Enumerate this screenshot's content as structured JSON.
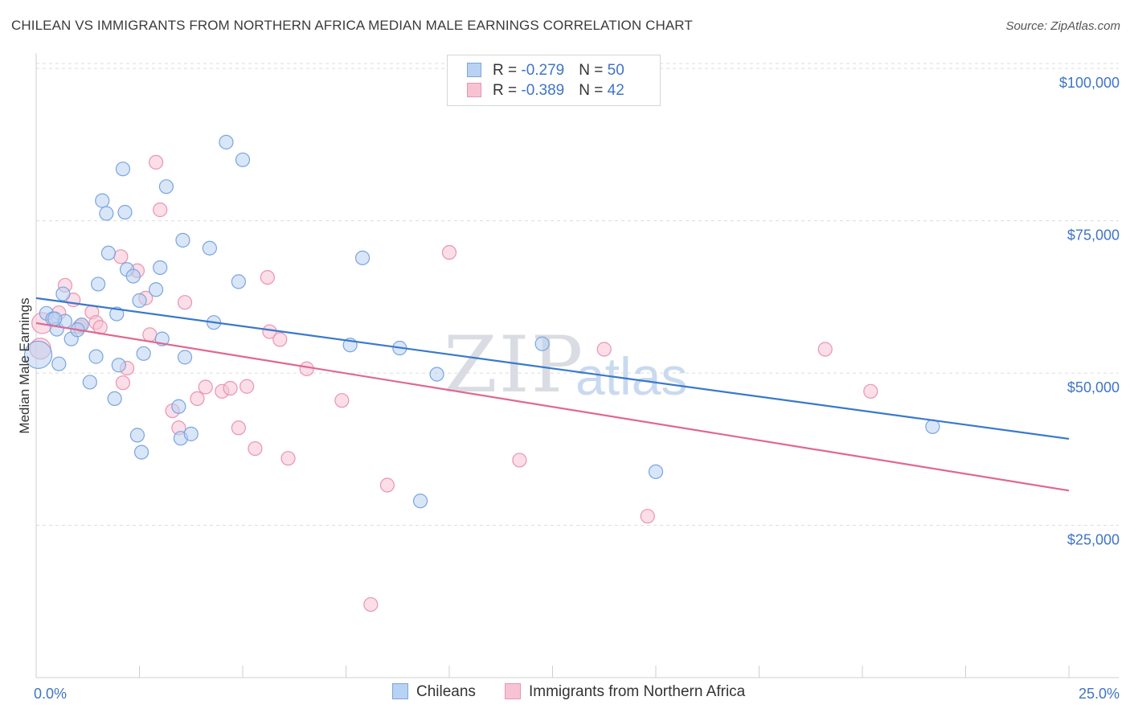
{
  "title": "CHILEAN VS IMMIGRANTS FROM NORTHERN AFRICA MEDIAN MALE EARNINGS CORRELATION CHART",
  "source": "Source: ZipAtlas.com",
  "watermark": {
    "zip": "ZIP",
    "atlas": "atlas"
  },
  "legend_top": [
    {
      "r_label": "R = ",
      "r_value": "-0.279",
      "n_label": "N = ",
      "n_value": "50"
    },
    {
      "r_label": "R = ",
      "r_value": "-0.389",
      "n_label": "N = ",
      "n_value": "42"
    }
  ],
  "legend_bottom": [
    "Chileans",
    "Immigrants from Northern Africa"
  ],
  "colors": {
    "blue_fill": "#b8d2f3",
    "blue_edge": "#7aa5df",
    "blue_line": "#3a78cc",
    "pink_fill": "#f7c3d3",
    "pink_edge": "#ea94b0",
    "pink_line": "#e0688f",
    "axis_text": "#3f74c8",
    "grid": "#dcdcdc"
  },
  "chart_data": {
    "type": "scatter",
    "title": "CHILEAN VS IMMIGRANTS FROM NORTHERN AFRICA MEDIAN MALE EARNINGS CORRELATION CHART",
    "xlabel": "",
    "ylabel": "Median Male Earnings",
    "xlim": [
      0,
      25
    ],
    "ylim": [
      0,
      102000
    ],
    "x_tick_labels": [
      "0.0%",
      "25.0%"
    ],
    "y_ticks": [
      25000,
      50000,
      75000,
      100000
    ],
    "y_tick_labels": [
      "$25,000",
      "$50,000",
      "$75,000",
      "$100,000"
    ],
    "grid": true,
    "series": [
      {
        "name": "Chileans",
        "color": "blue",
        "trend": {
          "x": [
            0,
            25
          ],
          "y": [
            62300,
            39200
          ]
        },
        "points": [
          [
            0.05,
            53000,
            3
          ],
          [
            0.25,
            59800,
            1
          ],
          [
            0.4,
            58900,
            1
          ],
          [
            0.5,
            57200,
            1
          ],
          [
            0.55,
            51500,
            1
          ],
          [
            0.65,
            63000,
            1
          ],
          [
            0.85,
            55600,
            1
          ],
          [
            1.1,
            57900,
            1
          ],
          [
            1.0,
            57100,
            1
          ],
          [
            1.3,
            48500,
            1
          ],
          [
            1.45,
            52700,
            1
          ],
          [
            1.5,
            64600,
            1
          ],
          [
            1.6,
            78300,
            1
          ],
          [
            1.7,
            76200,
            1
          ],
          [
            1.75,
            69700,
            1
          ],
          [
            1.9,
            45800,
            1
          ],
          [
            1.95,
            59700,
            1
          ],
          [
            2.0,
            51300,
            1
          ],
          [
            2.1,
            83500,
            1
          ],
          [
            2.15,
            76400,
            1
          ],
          [
            2.2,
            67000,
            1
          ],
          [
            2.35,
            65900,
            1
          ],
          [
            2.45,
            39800,
            1
          ],
          [
            2.5,
            61900,
            1
          ],
          [
            2.55,
            37000,
            1
          ],
          [
            2.6,
            53200,
            1
          ],
          [
            2.9,
            63700,
            1
          ],
          [
            3.0,
            67300,
            1
          ],
          [
            3.05,
            55600,
            1
          ],
          [
            3.15,
            80600,
            1
          ],
          [
            3.45,
            44500,
            1
          ],
          [
            3.5,
            39300,
            1
          ],
          [
            3.55,
            71800,
            1
          ],
          [
            3.6,
            52600,
            1
          ],
          [
            3.75,
            40000,
            1
          ],
          [
            4.2,
            70500,
            1
          ],
          [
            4.3,
            58300,
            1
          ],
          [
            4.6,
            87900,
            1
          ],
          [
            4.9,
            65000,
            1
          ],
          [
            5.0,
            85000,
            1
          ],
          [
            7.6,
            54600,
            1
          ],
          [
            7.9,
            68900,
            1
          ],
          [
            8.8,
            54100,
            1
          ],
          [
            9.3,
            29000,
            1
          ],
          [
            9.7,
            49800,
            1
          ],
          [
            12.25,
            54800,
            1
          ],
          [
            15.0,
            33800,
            1
          ],
          [
            21.7,
            41200,
            1
          ],
          [
            0.7,
            58500,
            1
          ],
          [
            0.45,
            58900,
            1
          ]
        ]
      },
      {
        "name": "Immigrants from Northern Africa",
        "color": "pink",
        "trend": {
          "x": [
            0,
            25
          ],
          "y": [
            58200,
            30700
          ]
        },
        "points": [
          [
            0.1,
            54000,
            2
          ],
          [
            0.15,
            58200,
            2
          ],
          [
            0.55,
            59900,
            1
          ],
          [
            0.7,
            64400,
            1
          ],
          [
            0.9,
            62000,
            1
          ],
          [
            1.05,
            57600,
            1
          ],
          [
            1.1,
            57900,
            1
          ],
          [
            1.35,
            60000,
            1
          ],
          [
            1.45,
            58300,
            1
          ],
          [
            1.55,
            57500,
            1
          ],
          [
            2.05,
            69100,
            1
          ],
          [
            2.2,
            50800,
            1
          ],
          [
            2.45,
            66800,
            1
          ],
          [
            2.65,
            62300,
            1
          ],
          [
            2.75,
            56300,
            1
          ],
          [
            2.9,
            84600,
            1
          ],
          [
            3.0,
            76800,
            1
          ],
          [
            3.3,
            43800,
            1
          ],
          [
            3.6,
            61600,
            1
          ],
          [
            3.45,
            41000,
            1
          ],
          [
            3.9,
            45800,
            1
          ],
          [
            4.1,
            47700,
            1
          ],
          [
            4.5,
            47000,
            1
          ],
          [
            4.7,
            47500,
            1
          ],
          [
            4.9,
            41000,
            1
          ],
          [
            5.1,
            47800,
            1
          ],
          [
            5.3,
            37600,
            1
          ],
          [
            5.6,
            65700,
            1
          ],
          [
            5.65,
            56800,
            1
          ],
          [
            5.9,
            55500,
            1
          ],
          [
            6.1,
            36000,
            1
          ],
          [
            6.55,
            50700,
            1
          ],
          [
            7.4,
            45500,
            1
          ],
          [
            8.1,
            12000,
            1
          ],
          [
            8.5,
            31600,
            1
          ],
          [
            10.0,
            69800,
            1
          ],
          [
            11.7,
            35700,
            1
          ],
          [
            13.75,
            53900,
            1
          ],
          [
            14.8,
            26500,
            1
          ],
          [
            19.1,
            53900,
            1
          ],
          [
            20.2,
            47000,
            1
          ],
          [
            2.1,
            48400,
            1
          ]
        ]
      }
    ]
  }
}
